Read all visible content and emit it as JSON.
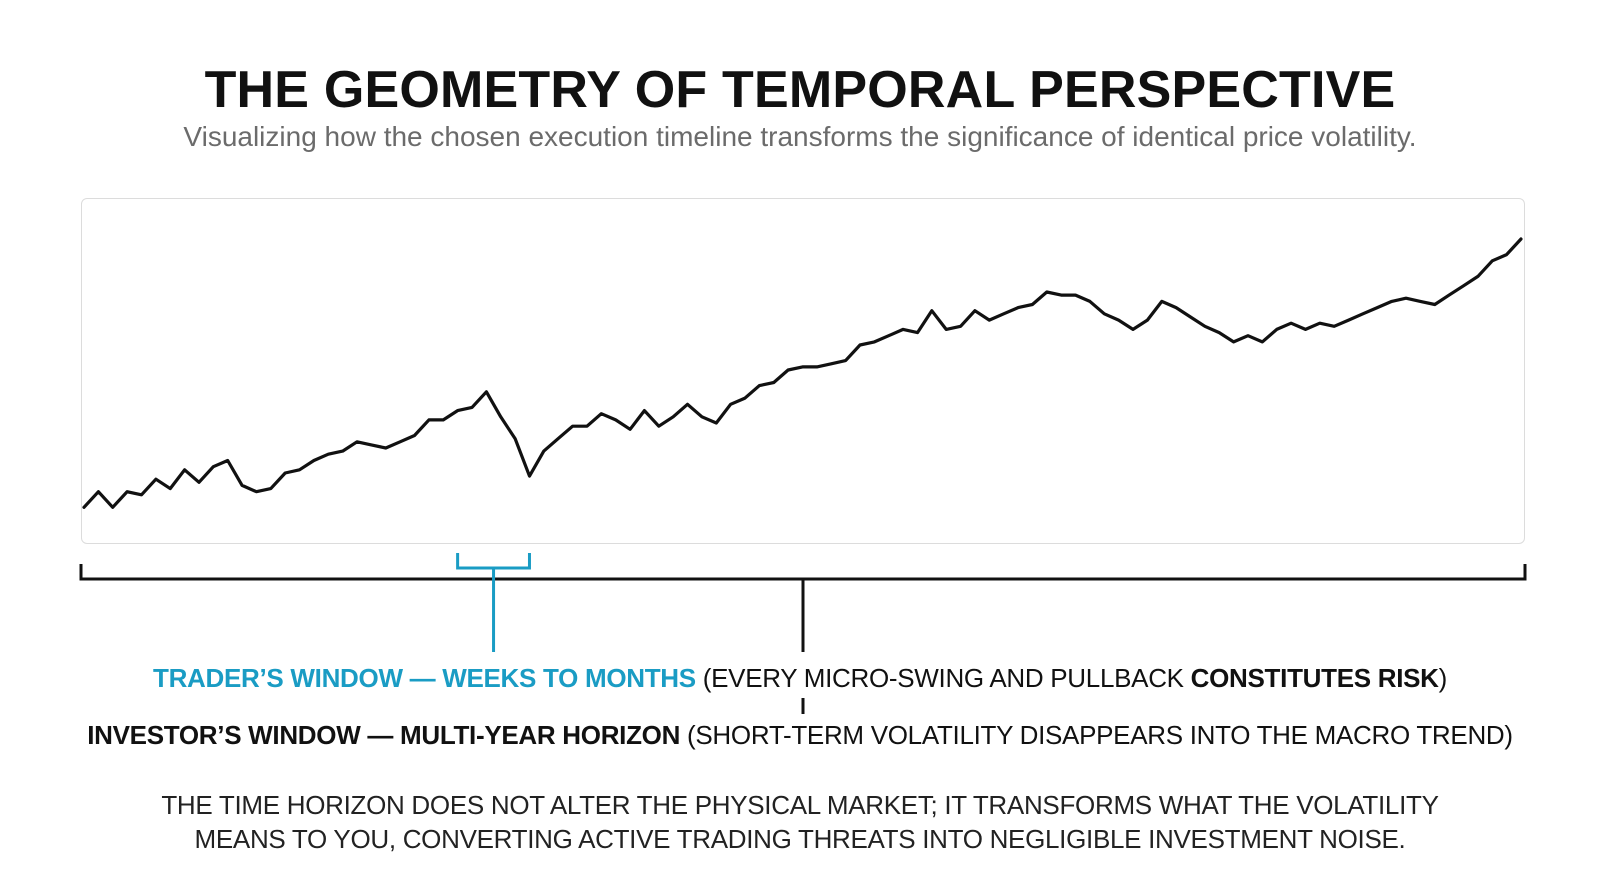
{
  "header": {
    "title": "THE GEOMETRY OF TEMPORAL PERSPECTIVE",
    "subtitle": "Visualizing how the chosen execution timeline transforms the significance of identical price volatility."
  },
  "colors": {
    "line": "#111111",
    "trader_accent": "#1a9cc4",
    "panel_border": "#dcdcdc"
  },
  "chart_data": {
    "type": "line",
    "title": "",
    "xlabel": "",
    "ylabel": "",
    "grid": false,
    "legend": "none",
    "x_range": [
      0,
      100
    ],
    "ylim": [
      0,
      100
    ],
    "x": [
      0,
      1,
      2,
      3,
      4,
      5,
      6,
      7,
      8,
      9,
      10,
      11,
      12,
      13,
      14,
      15,
      16,
      17,
      18,
      19,
      20,
      21,
      22,
      23,
      24,
      25,
      26,
      27,
      28,
      29,
      30,
      31,
      32,
      33,
      34,
      35,
      36,
      37,
      38,
      39,
      40,
      41,
      42,
      43,
      44,
      45,
      46,
      47,
      48,
      49,
      50,
      51,
      52,
      53,
      54,
      55,
      56,
      57,
      58,
      59,
      60,
      61,
      62,
      63,
      64,
      65,
      66,
      67,
      68,
      69,
      70,
      71,
      72,
      73,
      74,
      75,
      76,
      77,
      78,
      79,
      80,
      81,
      82,
      83,
      84,
      85,
      86,
      87,
      88,
      89,
      90,
      91,
      92,
      93,
      94,
      95,
      96,
      97,
      98,
      99,
      100
    ],
    "series": [
      {
        "values": [
          6,
          11,
          6,
          11,
          10,
          15,
          12,
          18,
          14,
          19,
          21,
          13,
          11,
          12,
          17,
          18,
          21,
          23,
          24,
          27,
          26,
          25,
          27,
          29,
          34,
          34,
          37,
          38,
          43,
          35,
          28,
          16,
          24,
          28,
          32,
          32,
          36,
          34,
          31,
          37,
          32,
          35,
          39,
          35,
          33,
          39,
          41,
          45,
          46,
          50,
          51,
          51,
          52,
          53,
          58,
          59,
          61,
          63,
          62,
          69,
          63,
          64,
          69,
          66,
          68,
          70,
          71,
          75,
          74,
          74,
          72,
          68,
          66,
          63,
          66,
          72,
          70,
          67,
          64,
          62,
          59,
          61,
          59,
          63,
          65,
          63,
          65,
          64,
          66,
          68,
          70,
          72,
          73,
          72,
          71,
          74,
          77,
          80,
          85,
          87,
          92
        ]
      }
    ]
  },
  "annotations": {
    "trader_title": "TRADER’S WINDOW — WEEKS TO MONTHS",
    "trader_note_open": " (EVERY MICRO-SWING AND PULLBACK ",
    "trader_note_bold": "CONSTITUTES RISK",
    "trader_note_close": ")",
    "investor_title": "INVESTOR’S WINDOW — MULTI-YEAR HORIZON",
    "investor_note": " (SHORT-TERM VOLATILITY DISAPPEARS INTO THE MACRO TREND)",
    "trader_window_x": [
      26,
      31
    ]
  },
  "footer": {
    "line1": "THE TIME HORIZON DOES NOT ALTER THE PHYSICAL MARKET; IT TRANSFORMS WHAT THE VOLATILITY",
    "line2": "MEANS TO YOU, CONVERTING ACTIVE TRADING THREATS INTO NEGLIGIBLE INVESTMENT NOISE."
  }
}
